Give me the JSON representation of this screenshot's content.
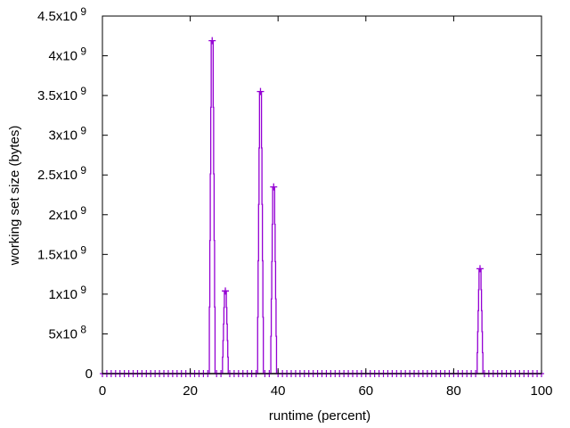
{
  "chart_data": {
    "type": "line",
    "title": "",
    "xlabel": "runtime (percent)",
    "ylabel": "working set size (bytes)",
    "xlim": [
      0,
      100
    ],
    "ylim": [
      0,
      4500000000
    ],
    "grid": false,
    "series_color": "#9400d3",
    "x_ticks": [
      "0",
      "20",
      "40",
      "60",
      "80",
      "100"
    ],
    "y_ticks": [
      {
        "mant": "0",
        "exp": ""
      },
      {
        "mant": "5x10",
        "exp": "8"
      },
      {
        "mant": "1x10",
        "exp": "9"
      },
      {
        "mant": "1.5x10",
        "exp": "9"
      },
      {
        "mant": "2x10",
        "exp": "9"
      },
      {
        "mant": "2.5x10",
        "exp": "9"
      },
      {
        "mant": "3x10",
        "exp": "9"
      },
      {
        "mant": "3.5x10",
        "exp": "9"
      },
      {
        "mant": "4x10",
        "exp": "9"
      },
      {
        "mant": "4.5x10",
        "exp": "9"
      }
    ],
    "peaks": [
      {
        "x": 25,
        "y": 4190000000
      },
      {
        "x": 28,
        "y": 1040000000
      },
      {
        "x": 36,
        "y": 3550000000
      },
      {
        "x": 39,
        "y": 2350000000
      },
      {
        "x": 86,
        "y": 1320000000
      }
    ],
    "x_step": 1
  }
}
